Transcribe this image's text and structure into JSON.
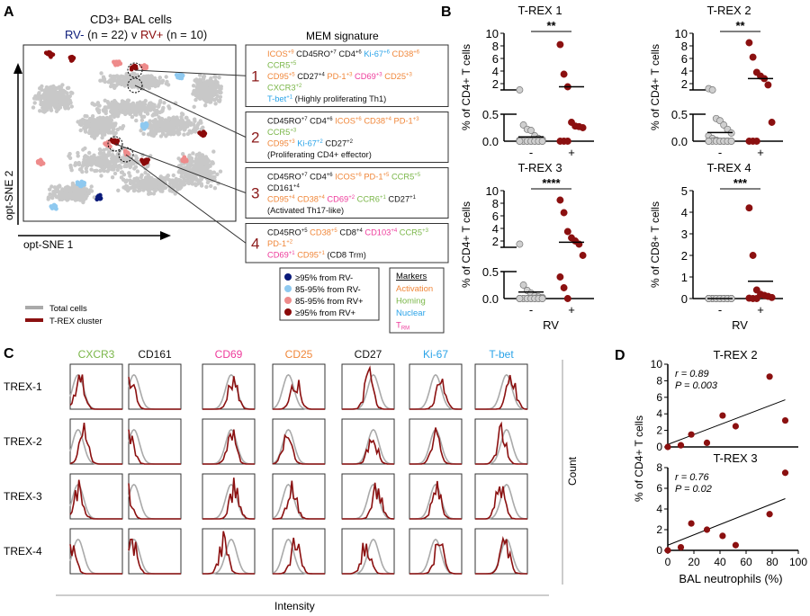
{
  "colors": {
    "activation": "#f0873a",
    "homing": "#7ab648",
    "nuclear": "#2aa3e8",
    "trm": "#ee3b9b",
    "black": "#111111",
    "rvneg_strong": "#0a1a7a",
    "rvneg": "#8ec9f0",
    "rvpos": "#ee8b8b",
    "rvpos_strong": "#8b0a0a",
    "total": "#aaaaaa",
    "cluster": "#8b1010",
    "cluster_num": "#8b1a1a"
  },
  "panelA": {
    "letter": "A",
    "title": "CD3+ BAL cells",
    "subtitle": [
      {
        "t": "RV- ",
        "c": "rvneg_strong"
      },
      {
        "t": "(n = 22) v ",
        "c": "black"
      },
      {
        "t": "RV+ ",
        "c": "rvpos_strong"
      },
      {
        "t": "(n = 10)",
        "c": "black"
      }
    ],
    "xlabel": "opt-SNE 1",
    "ylabel": "opt-SNE 2",
    "mem_title": "MEM signature",
    "clusters": [
      {
        "num": "1",
        "lines": [
          [
            {
              "t": "ICOS",
              "s": "+9",
              "c": "activation"
            },
            {
              "t": "CD45RO",
              "s": "+7",
              "c": "black"
            },
            {
              "t": "CD4",
              "s": "+6",
              "c": "black"
            },
            {
              "t": "Ki-67",
              "s": "+6",
              "c": "nuclear"
            },
            {
              "t": "CD38",
              "s": "+6",
              "c": "activation"
            },
            {
              "t": "CCR5",
              "s": "+5",
              "c": "homing"
            }
          ],
          [
            {
              "t": "CD95",
              "s": "+5",
              "c": "activation"
            },
            {
              "t": "CD27",
              "s": "+4",
              "c": "black"
            },
            {
              "t": "PD-1",
              "s": "+3",
              "c": "activation"
            },
            {
              "t": "CD69",
              "s": "+3",
              "c": "trm"
            },
            {
              "t": "CD25",
              "s": "+3",
              "c": "activation"
            },
            {
              "t": "CXCR3",
              "s": "+2",
              "c": "homing"
            }
          ],
          [
            {
              "t": "T-bet",
              "s": "+1",
              "c": "nuclear"
            },
            {
              "t": "(Highly proliferating Th1)",
              "s": "",
              "c": "black"
            }
          ]
        ]
      },
      {
        "num": "2",
        "lines": [
          [
            {
              "t": "CD45RO",
              "s": "+7",
              "c": "black"
            },
            {
              "t": "CD4",
              "s": "+6",
              "c": "black"
            },
            {
              "t": "ICOS",
              "s": "+6",
              "c": "activation"
            },
            {
              "t": "CD38",
              "s": "+4",
              "c": "activation"
            },
            {
              "t": "PD-1",
              "s": "+3",
              "c": "activation"
            },
            {
              "t": "CCR5",
              "s": "+3",
              "c": "homing"
            }
          ],
          [
            {
              "t": "CD95",
              "s": "+3",
              "c": "activation"
            },
            {
              "t": "Ki-67",
              "s": "+2",
              "c": "nuclear"
            },
            {
              "t": "CD27",
              "s": "+2",
              "c": "black"
            },
            {
              "t": "(Proliferating  CD4+ effector)",
              "s": "",
              "c": "black"
            }
          ]
        ]
      },
      {
        "num": "3",
        "lines": [
          [
            {
              "t": "CD45RO",
              "s": "+7",
              "c": "black"
            },
            {
              "t": "CD4",
              "s": "+6",
              "c": "black"
            },
            {
              "t": "ICOS",
              "s": "+6",
              "c": "activation"
            },
            {
              "t": "PD-1",
              "s": "+5",
              "c": "activation"
            },
            {
              "t": "CCR5",
              "s": "+5",
              "c": "homing"
            },
            {
              "t": "CD161",
              "s": "+4",
              "c": "black"
            }
          ],
          [
            {
              "t": "CD95",
              "s": "+4",
              "c": "activation"
            },
            {
              "t": "CD38",
              "s": "+4",
              "c": "activation"
            },
            {
              "t": "CD69",
              "s": "+2",
              "c": "trm"
            },
            {
              "t": "CCR6",
              "s": "+1",
              "c": "homing"
            },
            {
              "t": "CD27",
              "s": "+1",
              "c": "black"
            }
          ],
          [
            {
              "t": "(Activated Th17-like)",
              "s": "",
              "c": "black"
            }
          ]
        ]
      },
      {
        "num": "4",
        "lines": [
          [
            {
              "t": "CD45RO",
              "s": "+5",
              "c": "black"
            },
            {
              "t": "CD38",
              "s": "+5",
              "c": "activation"
            },
            {
              "t": "CD8",
              "s": "+4",
              "c": "black"
            },
            {
              "t": "CD103",
              "s": "+4",
              "c": "trm"
            },
            {
              "t": "CCR5",
              "s": "+3",
              "c": "homing"
            },
            {
              "t": "PD-1",
              "s": "+2",
              "c": "activation"
            }
          ],
          [
            {
              "t": "CD69",
              "s": "+1",
              "c": "trm"
            },
            {
              "t": "CD95",
              "s": "+1",
              "c": "activation"
            },
            {
              "t": "(CD8 Trm)",
              "s": "",
              "c": "black"
            }
          ]
        ]
      }
    ],
    "legend": [
      {
        "label": "≥95% from RV-",
        "c": "rvneg_strong"
      },
      {
        "label": "85-95% from RV-",
        "c": "rvneg"
      },
      {
        "label": "85-95% from RV+",
        "c": "rvpos"
      },
      {
        "label": "≥95% from RV+",
        "c": "rvpos_strong"
      }
    ],
    "markers": {
      "title": "Markers",
      "items": [
        {
          "label": "Activation",
          "c": "activation"
        },
        {
          "label": "Homing",
          "c": "homing"
        },
        {
          "label": "Nuclear",
          "c": "nuclear"
        },
        {
          "label": "T",
          "sub": "RM",
          "c": "trm"
        }
      ]
    },
    "line_legend": [
      {
        "label": "Total cells",
        "c": "total"
      },
      {
        "label": "T-REX cluster",
        "c": "cluster"
      }
    ]
  },
  "panelC": {
    "letter": "C",
    "markers": [
      {
        "t": "CXCR3",
        "c": "homing"
      },
      {
        "t": "CD161",
        "c": "black"
      },
      {
        "t": "CD69",
        "c": "trm"
      },
      {
        "t": "CD25",
        "c": "activation"
      },
      {
        "t": "CD27",
        "c": "black"
      },
      {
        "t": "Ki-67",
        "c": "nuclear"
      },
      {
        "t": "T-bet",
        "c": "nuclear"
      }
    ],
    "rows": [
      "TREX-1",
      "TREX-2",
      "TREX-3",
      "TREX-4"
    ],
    "xlabel": "Intensity",
    "ylabel": "Count"
  },
  "chart_data": [
    {
      "type": "scatter",
      "panel": "B",
      "title": "T-REX 1",
      "ylabel": "% of CD4+ T cells",
      "categories": [
        "-",
        "+"
      ],
      "broken_axis": {
        "lower": [
          0,
          0.5
        ],
        "upper": [
          1,
          10
        ]
      },
      "lower_ticks": [
        "0.0",
        "0.5"
      ],
      "upper_ticks": [
        "2",
        "4",
        "6",
        "8",
        "10"
      ],
      "significance": "**",
      "series": [
        {
          "category": "-",
          "values": [
            1.0,
            0.3,
            0.22,
            0.2,
            0.1,
            0.05,
            0.03,
            0.02,
            0,
            0,
            0,
            0,
            0,
            0,
            0,
            0,
            0,
            0,
            0,
            0,
            0,
            0
          ],
          "mean": 0.08
        },
        {
          "category": "+",
          "values": [
            8.2,
            3.5,
            1.5,
            0.35,
            0.28,
            0.27,
            0.25,
            0,
            0,
            0
          ],
          "mean": 1.5
        }
      ]
    },
    {
      "type": "scatter",
      "panel": "B",
      "title": "T-REX 2",
      "ylabel": "% of CD4+ T cells",
      "categories": [
        "-",
        "+"
      ],
      "broken_axis": {
        "lower": [
          0,
          0.5
        ],
        "upper": [
          1,
          10
        ]
      },
      "lower_ticks": [
        "0.0",
        "0.5"
      ],
      "upper_ticks": [
        "2",
        "4",
        "6",
        "8",
        "10"
      ],
      "significance": "**",
      "series": [
        {
          "category": "-",
          "values": [
            1.2,
            1.0,
            0.42,
            0.38,
            0.3,
            0.22,
            0.15,
            0.1,
            0.05,
            0.02,
            0,
            0,
            0,
            0,
            0,
            0,
            0,
            0,
            0,
            0,
            0,
            0
          ],
          "mean": 0.16
        },
        {
          "category": "+",
          "values": [
            8.5,
            6.2,
            3.8,
            3.2,
            2.8,
            1.8,
            0.35,
            0,
            0,
            0
          ],
          "mean": 2.8
        }
      ]
    },
    {
      "type": "scatter",
      "panel": "B",
      "title": "T-REX 3",
      "ylabel": "% of CD4+ T cells",
      "categories": [
        "-",
        "+"
      ],
      "xlabel": "RV",
      "broken_axis": {
        "lower": [
          0,
          0.5
        ],
        "upper": [
          1,
          10
        ]
      },
      "lower_ticks": [
        "0.0",
        "0.5"
      ],
      "upper_ticks": [
        "2",
        "4",
        "6",
        "8",
        "10"
      ],
      "significance": "****",
      "series": [
        {
          "category": "-",
          "values": [
            1.5,
            0.25,
            0.15,
            0.1,
            0.05,
            0.03,
            0.02,
            0,
            0,
            0,
            0,
            0,
            0,
            0,
            0,
            0,
            0,
            0,
            0,
            0,
            0,
            0
          ],
          "mean": 0.12
        },
        {
          "category": "+",
          "values": [
            8.5,
            6.5,
            3.5,
            2.5,
            2.0,
            1.5,
            0.8,
            0.4,
            0.2,
            0
          ],
          "mean": 1.8
        }
      ]
    },
    {
      "type": "scatter",
      "panel": "B",
      "title": "T-REX 4",
      "ylabel": "% of CD8+ T cells",
      "categories": [
        "-",
        "+"
      ],
      "xlabel": "RV",
      "ylim": [
        0,
        5
      ],
      "ticks": [
        "0",
        "1",
        "2",
        "3",
        "4",
        "5"
      ],
      "significance": "***",
      "series": [
        {
          "category": "-",
          "values": [
            0,
            0,
            0,
            0,
            0,
            0,
            0,
            0,
            0,
            0,
            0,
            0,
            0,
            0,
            0,
            0,
            0,
            0,
            0,
            0,
            0,
            0
          ],
          "mean": 0
        },
        {
          "category": "+",
          "values": [
            4.2,
            2.0,
            0.4,
            0.2,
            0.15,
            0.1,
            0.05,
            0.02,
            0,
            0
          ],
          "mean": 0.8
        }
      ]
    },
    {
      "type": "scatter",
      "panel": "D",
      "title": "T-REX 2",
      "annotation": [
        "r = 0.89",
        "P = 0.003"
      ],
      "xlim": [
        0,
        100
      ],
      "ylim": [
        0,
        10
      ],
      "yticks": [
        "0",
        "2",
        "4",
        "6",
        "8",
        "10"
      ],
      "points": [
        [
          0,
          0
        ],
        [
          10,
          0.2
        ],
        [
          18,
          1.5
        ],
        [
          30,
          0.5
        ],
        [
          42,
          3.8
        ],
        [
          52,
          2.5
        ],
        [
          78,
          8.5
        ],
        [
          90,
          3.2
        ]
      ],
      "fit": [
        [
          0,
          0.3
        ],
        [
          90,
          5.7
        ]
      ]
    },
    {
      "type": "scatter",
      "panel": "D",
      "title": "T-REX 3",
      "annotation": [
        "r = 0.76",
        "P = 0.02"
      ],
      "xlim": [
        0,
        100
      ],
      "ylim": [
        0,
        8
      ],
      "yticks": [
        "0",
        "2",
        "4",
        "6",
        "8"
      ],
      "xticks": [
        "0",
        "20",
        "40",
        "60",
        "80",
        "100"
      ],
      "xlabel": "BAL neutrophils (%)",
      "ylabel": "% of CD4+ T cells",
      "points": [
        [
          0,
          0
        ],
        [
          10,
          0.3
        ],
        [
          18,
          2.6
        ],
        [
          30,
          2.0
        ],
        [
          42,
          1.4
        ],
        [
          52,
          0.5
        ],
        [
          78,
          3.5
        ],
        [
          90,
          7.5
        ]
      ],
      "fit": [
        [
          0,
          0.5
        ],
        [
          90,
          5.0
        ]
      ]
    }
  ],
  "panelB": {
    "letter": "B"
  },
  "panelD": {
    "letter": "D"
  }
}
